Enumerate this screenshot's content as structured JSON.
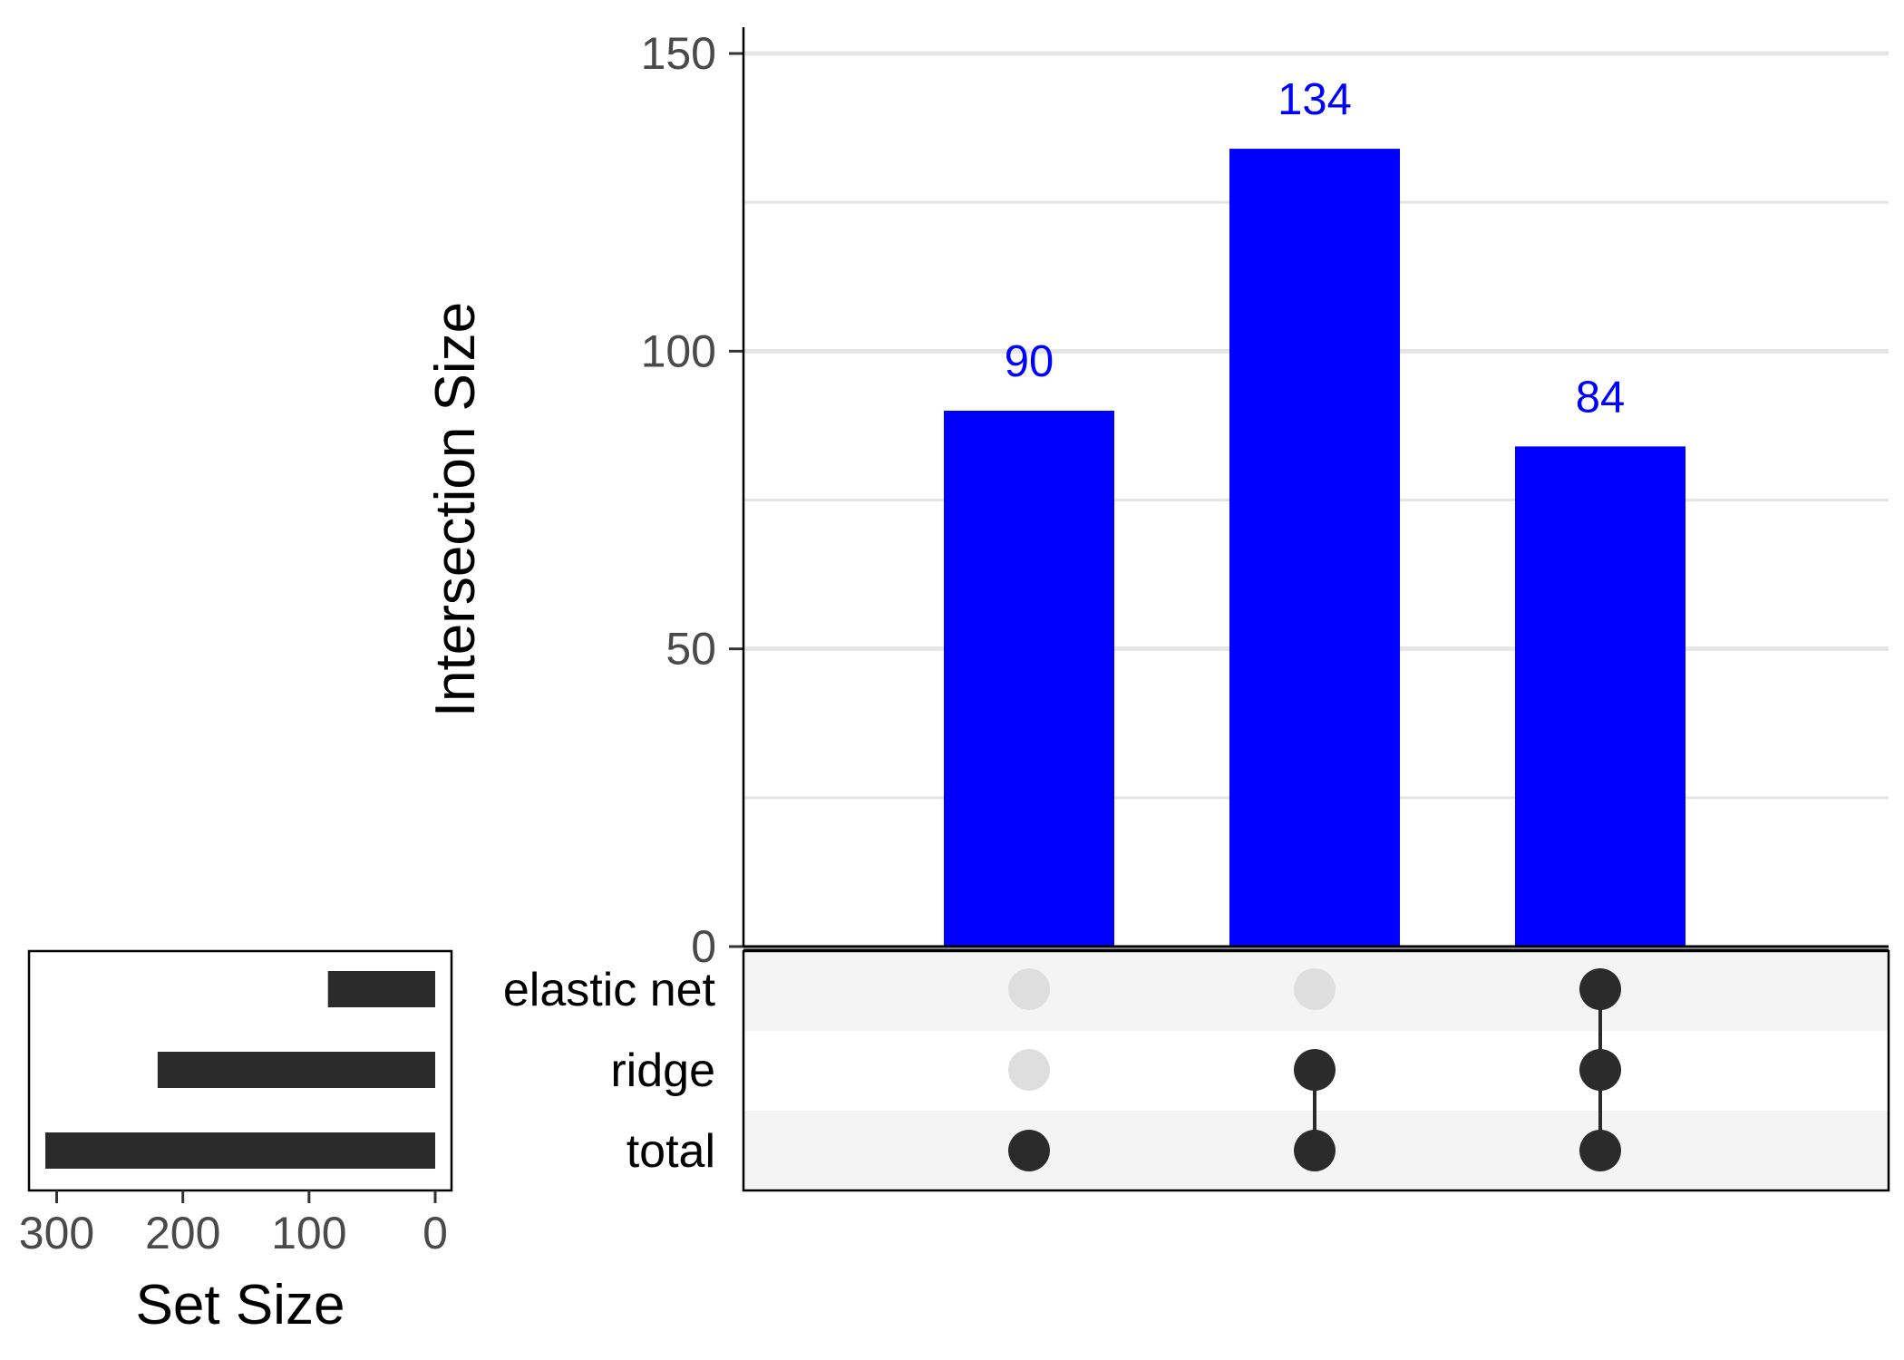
{
  "chart_data": {
    "type": "upset",
    "intersections": [
      {
        "members": [
          "total"
        ],
        "value": 90
      },
      {
        "members": [
          "ridge",
          "total"
        ],
        "value": 134
      },
      {
        "members": [
          "elastic net",
          "ridge",
          "total"
        ],
        "value": 84
      }
    ],
    "sets": [
      {
        "name": "elastic net",
        "size": 85
      },
      {
        "name": "ridge",
        "size": 220
      },
      {
        "name": "total",
        "size": 309
      }
    ],
    "intersection_axis": {
      "label": "Intersection Size",
      "ylim": [
        0,
        150
      ],
      "ticks": [
        0,
        50,
        100,
        150
      ]
    },
    "set_axis": {
      "label": "Set Size",
      "xlim": [
        0,
        300
      ],
      "ticks": [
        300,
        200,
        100,
        0
      ]
    },
    "grid": true,
    "colors": {
      "bars": "#0000ff",
      "bar_labels": "#0000ff",
      "set_bars": "#2b2b2b",
      "dot_active": "#2b2b2b",
      "dot_inactive": "#dedede",
      "stripe": "#f4f4f4",
      "grid": "#e5e5e5"
    }
  }
}
